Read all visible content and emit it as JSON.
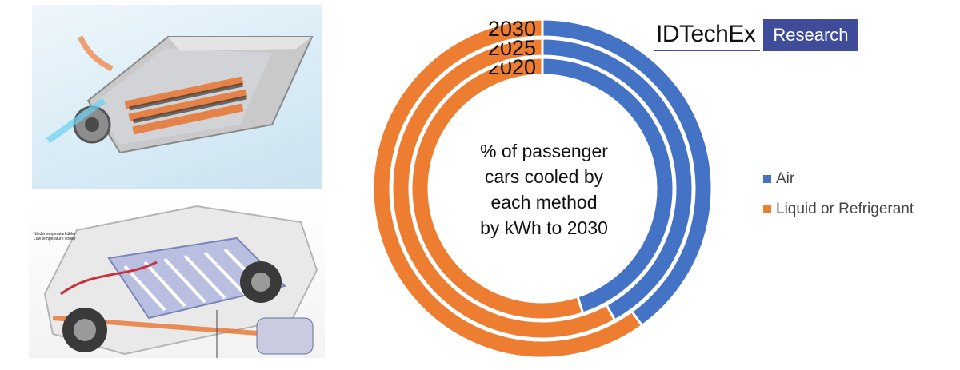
{
  "photos": {
    "battery_pack": {
      "icon": "battery-pack-cutaway-icon"
    },
    "car_chassis": {
      "icon": "ev-chassis-cutaway-icon",
      "caption_line1": "Niedertemperaturkühler",
      "caption_line2": "Low temperature cooler"
    }
  },
  "logo": {
    "main": "IDTechEx",
    "box": "Research",
    "color": "#3f4c9a"
  },
  "chart_data": {
    "type": "donut",
    "title": "% of passenger cars cooled by each method by kWh to 2030",
    "center_lines": [
      "% of passenger",
      "cars cooled by",
      "each method",
      "by kWh to 2030"
    ],
    "categories": [
      "2020",
      "2025",
      "2030"
    ],
    "series": [
      {
        "name": "Air",
        "color": "#4472c4",
        "values": [
          45,
          42,
          40
        ]
      },
      {
        "name": "Liquid or Refrigerant",
        "color": "#ed7d31",
        "values": [
          55,
          58,
          60
        ]
      }
    ],
    "ring_order": "inner-to-outer",
    "legend": "right"
  }
}
